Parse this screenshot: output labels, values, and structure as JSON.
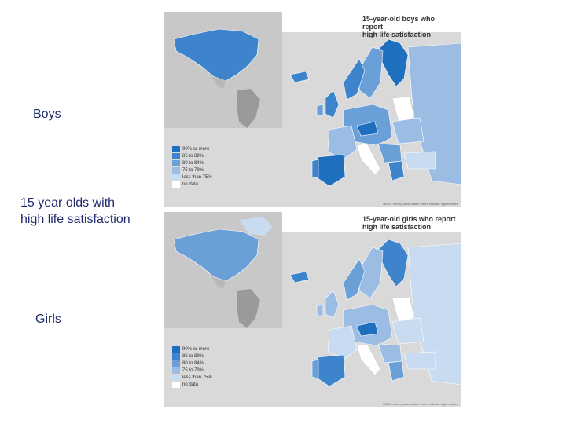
{
  "labels": {
    "boys": "Boys",
    "title_line1": "15 year olds with",
    "title_line2": "high life satisfaction",
    "girls": "Girls"
  },
  "maps": [
    {
      "title_line1": "15-year-old boys who report",
      "title_line2": "high life satisfaction",
      "footnote": "HBSC survey data, darker tones indicate higher share",
      "legend": [
        {
          "label": "90% or more",
          "color": "#1f6fbf"
        },
        {
          "label": "85 to 89%",
          "color": "#3d84cc"
        },
        {
          "label": "80 to 84%",
          "color": "#6b9fd8"
        },
        {
          "label": "75 to 79%",
          "color": "#9bbde4"
        },
        {
          "label": "less than 75%",
          "color": "#c9dbf0"
        },
        {
          "label": "no data",
          "color": "#ffffff"
        }
      ]
    },
    {
      "title_line1": "15-year-old girls who report",
      "title_line2": "high life satisfaction",
      "footnote": "HBSC survey data, darker tones indicate higher share",
      "legend": [
        {
          "label": "90% or more",
          "color": "#1f6fbf"
        },
        {
          "label": "85 to 89%",
          "color": "#3d84cc"
        },
        {
          "label": "80 to 84%",
          "color": "#6b9fd8"
        },
        {
          "label": "75 to 79%",
          "color": "#9bbde4"
        },
        {
          "label": "less than 75%",
          "color": "#c9dbf0"
        },
        {
          "label": "no data",
          "color": "#ffffff"
        }
      ]
    }
  ]
}
